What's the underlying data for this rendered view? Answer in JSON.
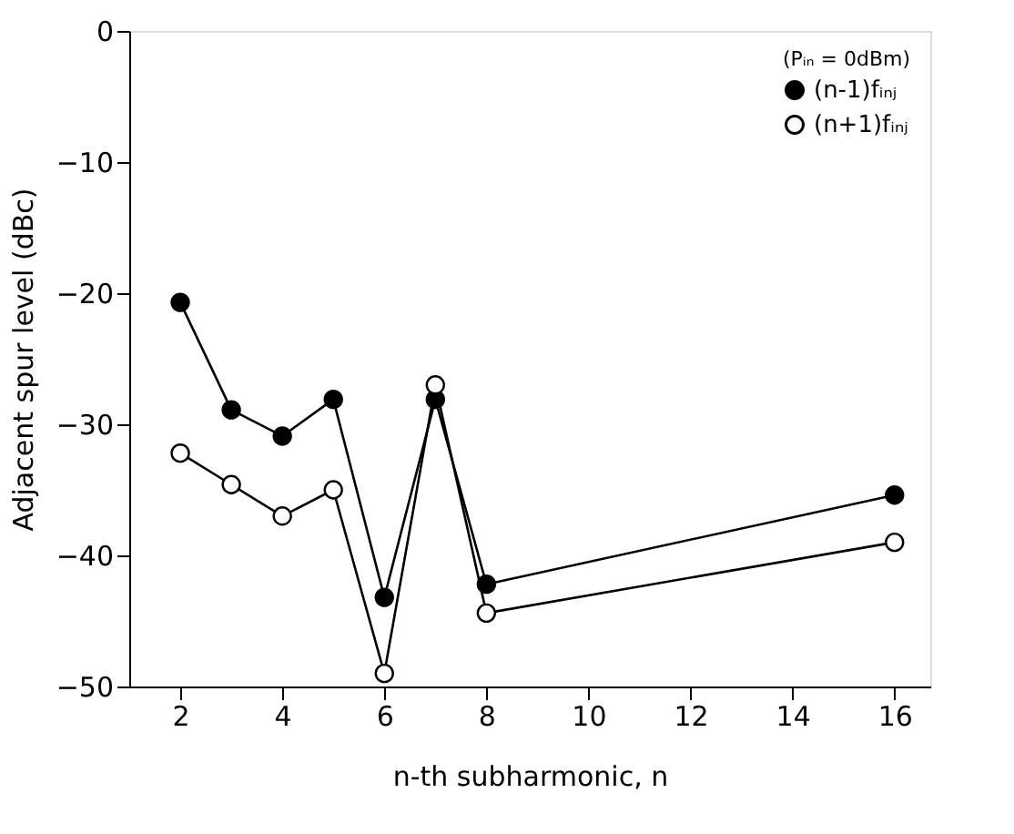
{
  "chart_data": {
    "type": "line",
    "xlabel": "n-th subharmonic, n",
    "ylabel": "Adjacent spur level  (dBc)",
    "legend_title": "(Pᵢₙ = 0dBm)",
    "x": [
      2,
      3,
      4,
      5,
      6,
      7,
      8,
      16
    ],
    "series": [
      {
        "name": "(n-1)fᵢₙⱼ",
        "color": "#000000",
        "values": [
          -20.7,
          -28.9,
          -30.9,
          -28.1,
          -43.2,
          -28.1,
          -42.2,
          -35.4
        ]
      },
      {
        "name": "(n+1)fᵢₙⱼ",
        "color": "#000000",
        "values": [
          -32.2,
          -34.6,
          -37.0,
          -35.0,
          -49.0,
          -27.0,
          -44.4,
          -39.0
        ]
      }
    ],
    "xlim": [
      1,
      16.7
    ],
    "xticks": [
      2,
      4,
      6,
      8,
      10,
      12,
      14,
      16
    ],
    "ylim": [
      -50,
      0
    ],
    "yticks": [
      -50,
      -40,
      -30,
      -20,
      -10,
      0
    ],
    "marker": "circle",
    "line_style": "solid",
    "grid": false,
    "legend": "top right"
  }
}
